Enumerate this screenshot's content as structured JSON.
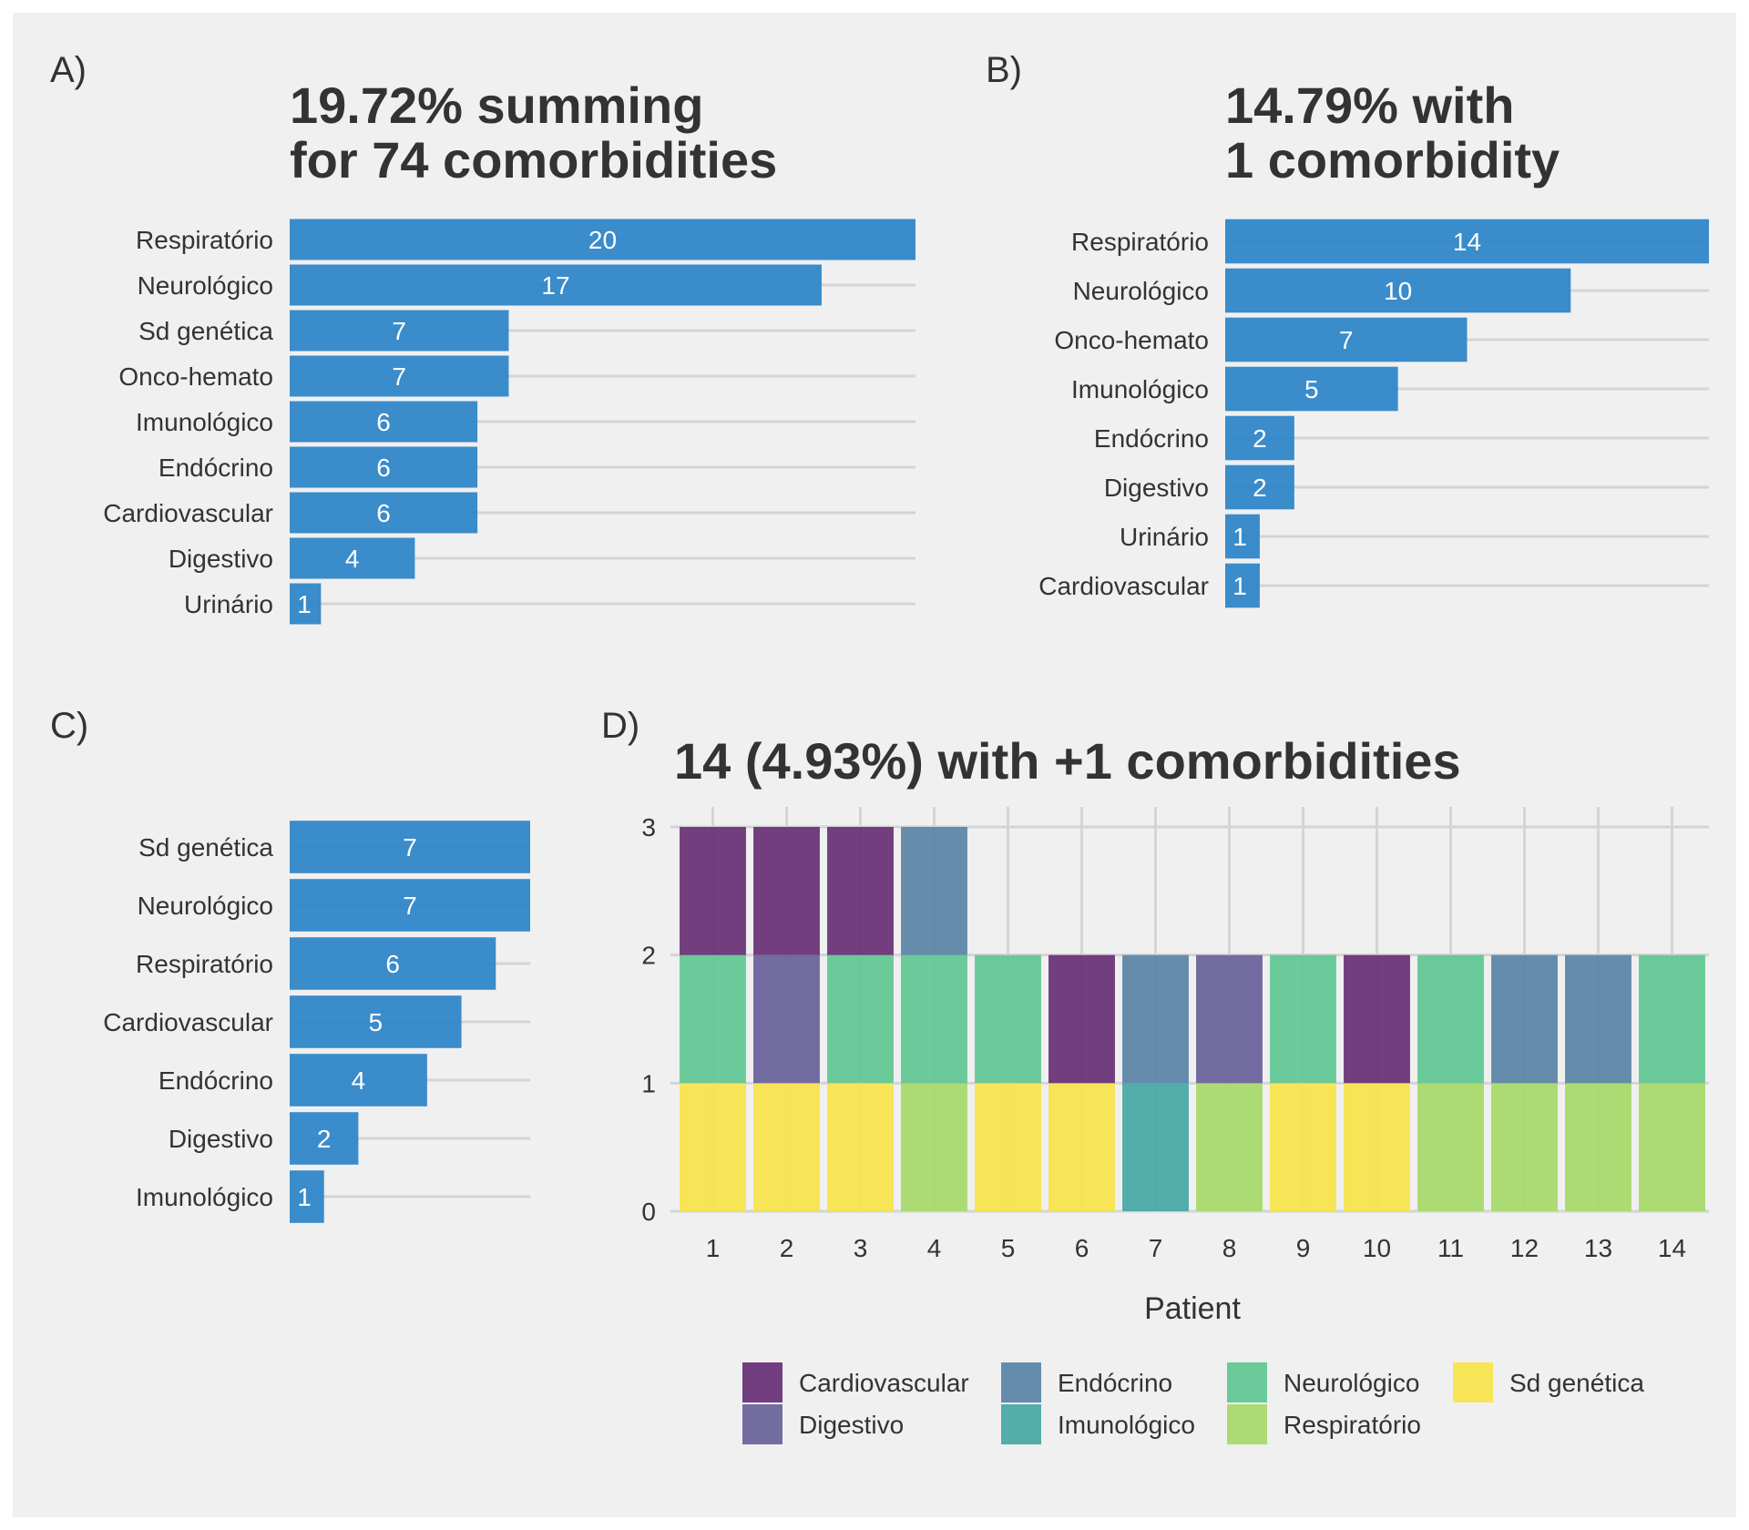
{
  "chart_data": [
    {
      "panel_label": "A)",
      "type": "bar",
      "orientation": "horizontal",
      "title_lines": [
        "19.72% summing",
        "for 74 comorbidities"
      ],
      "categories": [
        "Respiratório",
        "Neurológico",
        "Sd genética",
        "Onco-hemato",
        "Imunológico",
        "Endócrino",
        "Cardiovascular",
        "Digestivo",
        "Urinário"
      ],
      "values": [
        20,
        17,
        7,
        7,
        6,
        6,
        6,
        4,
        1
      ],
      "xlim": [
        0,
        20
      ],
      "bar_color": "#2f86c8",
      "data_labels": true,
      "grid": "horizontal"
    },
    {
      "panel_label": "B)",
      "type": "bar",
      "orientation": "horizontal",
      "title_lines": [
        "14.79% with",
        "1 comorbidity"
      ],
      "categories": [
        "Respiratório",
        "Neurológico",
        "Onco-hemato",
        "Imunológico",
        "Endócrino",
        "Digestivo",
        "Urinário",
        "Cardiovascular"
      ],
      "values": [
        14,
        10,
        7,
        5,
        2,
        2,
        1,
        1
      ],
      "xlim": [
        0,
        14
      ],
      "bar_color": "#2f86c8",
      "data_labels": true,
      "grid": "horizontal"
    },
    {
      "panel_label": "C)",
      "type": "bar",
      "orientation": "horizontal",
      "title_lines": [],
      "categories": [
        "Sd genética",
        "Neurológico",
        "Respiratório",
        "Cardiovascular",
        "Endócrino",
        "Digestivo",
        "Imunológico"
      ],
      "values": [
        7,
        7,
        6,
        5,
        4,
        2,
        1
      ],
      "xlim": [
        0,
        7
      ],
      "bar_color": "#2f86c8",
      "data_labels": true,
      "grid": "horizontal"
    },
    {
      "panel_label": "D)",
      "type": "bar",
      "orientation": "vertical",
      "stacked": true,
      "title_lines": [
        "14 (4.93%) with +1 comorbidities"
      ],
      "xlabel": "Patient",
      "ylabel": "",
      "x": [
        "1",
        "2",
        "3",
        "4",
        "5",
        "6",
        "7",
        "8",
        "9",
        "10",
        "11",
        "12",
        "13",
        "14"
      ],
      "yticks": [
        "0",
        "1",
        "2",
        "3"
      ],
      "ylim": [
        0,
        3
      ],
      "stacks": [
        [
          "Sd genética",
          "Neurológico",
          "Cardiovascular"
        ],
        [
          "Sd genética",
          "Digestivo",
          "Cardiovascular"
        ],
        [
          "Sd genética",
          "Neurológico",
          "Cardiovascular"
        ],
        [
          "Respiratório",
          "Neurológico",
          "Endócrino"
        ],
        [
          "Sd genética",
          "Neurológico"
        ],
        [
          "Sd genética",
          "Cardiovascular"
        ],
        [
          "Imunológico",
          "Endócrino"
        ],
        [
          "Respiratório",
          "Digestivo"
        ],
        [
          "Sd genética",
          "Neurológico"
        ],
        [
          "Sd genética",
          "Cardiovascular"
        ],
        [
          "Respiratório",
          "Neurológico"
        ],
        [
          "Respiratório",
          "Endócrino"
        ],
        [
          "Respiratório",
          "Endócrino"
        ],
        [
          "Respiratório",
          "Neurológico"
        ]
      ],
      "legend": [
        {
          "name": "Cardiovascular",
          "color": "#6a3478"
        },
        {
          "name": "Endócrino",
          "color": "#5e86a6"
        },
        {
          "name": "Neurológico",
          "color": "#63c793"
        },
        {
          "name": "Sd genética",
          "color": "#f7e44e"
        },
        {
          "name": "Digestivo",
          "color": "#6b649c"
        },
        {
          "name": "Imunológico",
          "color": "#4aa9a7"
        },
        {
          "name": "Respiratório",
          "color": "#a6d96a"
        }
      ],
      "legend_position": "bottom",
      "grid": "both"
    }
  ]
}
